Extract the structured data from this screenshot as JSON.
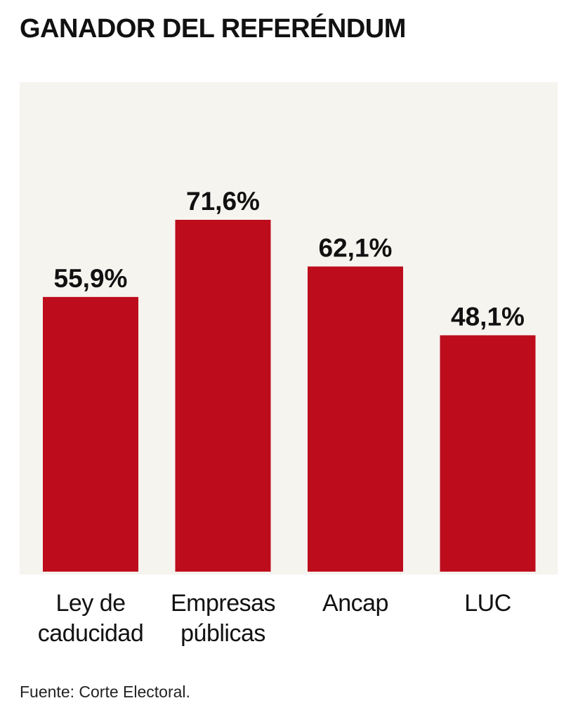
{
  "title": "GANADOR DEL REFERÉNDUM",
  "source": "Fuente: Corte Electoral.",
  "colors": {
    "bar": "#bd0c1c",
    "plot_background": "#f6f4ef",
    "text": "#111111"
  },
  "chart_data": {
    "type": "bar",
    "title": "GANADOR DEL REFERÉNDUM",
    "categories": [
      [
        "Ley de",
        "caducidad"
      ],
      [
        "Empresas",
        "públicas"
      ],
      [
        "Ancap"
      ],
      [
        "LUC"
      ]
    ],
    "values": [
      55.9,
      71.6,
      62.1,
      48.1
    ],
    "value_labels": [
      "55,9%",
      "71,6%",
      "62,1%",
      "48,1%"
    ],
    "xlabel": "",
    "ylabel": "",
    "ylim": [
      0,
      85
    ],
    "grid": false,
    "legend": "none"
  }
}
